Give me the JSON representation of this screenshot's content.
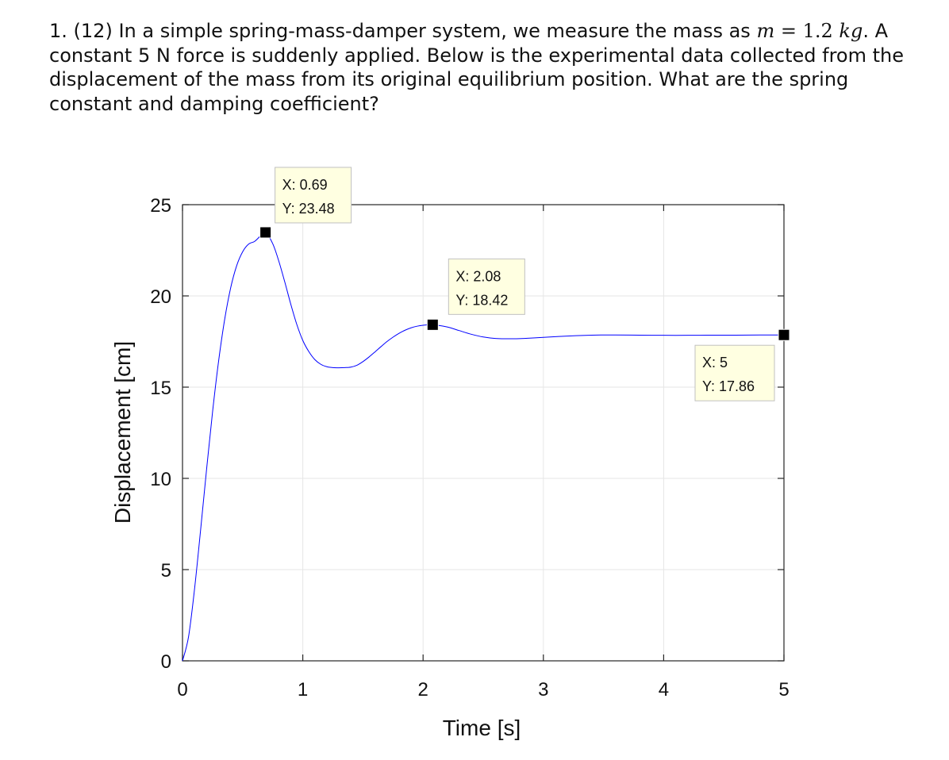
{
  "question": {
    "number": "1.",
    "points": "(12)",
    "text_before_math": "In a simple spring-mass-damper system, we measure the mass as",
    "math_var": "m",
    "math_eq": "=",
    "math_value": "1.2",
    "math_unit": "kg",
    "text_after_math": ". A constant 5 N force is suddenly applied. Below is the experimental data collected from the displacement of the mass from its original equilibrium position. What are the spring constant and damping coefficient?"
  },
  "chart_data": {
    "type": "line",
    "title": "",
    "xlabel": "Time [s]",
    "ylabel": "Displacement [cm]",
    "xlim": [
      0,
      5
    ],
    "ylim": [
      0,
      25
    ],
    "xticks": [
      0,
      1,
      2,
      3,
      4,
      5
    ],
    "yticks": [
      0,
      5,
      10,
      15,
      20,
      25
    ],
    "grid": true,
    "series": [
      {
        "color": "#0000ff",
        "points": [
          [
            0.0,
            0.0
          ],
          [
            0.05,
            1.31
          ],
          [
            0.1,
            3.93
          ],
          [
            0.15,
            7.14
          ],
          [
            0.2,
            10.48
          ],
          [
            0.25,
            13.65
          ],
          [
            0.3,
            16.42
          ],
          [
            0.35,
            18.69
          ],
          [
            0.4,
            20.43
          ],
          [
            0.45,
            21.65
          ],
          [
            0.5,
            22.42
          ],
          [
            0.55,
            22.84
          ],
          [
            0.6,
            22.99
          ],
          [
            0.65,
            23.3
          ],
          [
            0.69,
            23.48
          ],
          [
            0.75,
            22.86
          ],
          [
            0.8,
            21.92
          ],
          [
            0.85,
            20.77
          ],
          [
            0.9,
            19.55
          ],
          [
            0.95,
            18.44
          ],
          [
            1.0,
            17.56
          ],
          [
            1.05,
            16.95
          ],
          [
            1.1,
            16.51
          ],
          [
            1.15,
            16.25
          ],
          [
            1.2,
            16.12
          ],
          [
            1.25,
            16.07
          ],
          [
            1.3,
            16.06
          ],
          [
            1.35,
            16.07
          ],
          [
            1.4,
            16.1
          ],
          [
            1.45,
            16.2
          ],
          [
            1.5,
            16.4
          ],
          [
            1.55,
            16.65
          ],
          [
            1.6,
            16.93
          ],
          [
            1.65,
            17.22
          ],
          [
            1.7,
            17.5
          ],
          [
            1.75,
            17.74
          ],
          [
            1.8,
            17.95
          ],
          [
            1.85,
            18.12
          ],
          [
            1.9,
            18.25
          ],
          [
            1.95,
            18.34
          ],
          [
            2.0,
            18.39
          ],
          [
            2.08,
            18.42
          ],
          [
            2.2,
            18.3
          ],
          [
            2.3,
            18.1
          ],
          [
            2.4,
            17.9
          ],
          [
            2.5,
            17.75
          ],
          [
            2.6,
            17.67
          ],
          [
            2.7,
            17.65
          ],
          [
            2.8,
            17.66
          ],
          [
            2.9,
            17.69
          ],
          [
            3.0,
            17.73
          ],
          [
            3.2,
            17.8
          ],
          [
            3.4,
            17.85
          ],
          [
            3.5,
            17.86
          ],
          [
            3.6,
            17.86
          ],
          [
            3.8,
            17.85
          ],
          [
            4.0,
            17.84
          ],
          [
            4.2,
            17.84
          ],
          [
            4.4,
            17.85
          ],
          [
            4.6,
            17.85
          ],
          [
            4.8,
            17.86
          ],
          [
            5.0,
            17.86
          ]
        ]
      }
    ],
    "annotations": [
      {
        "x": 0.69,
        "y": 23.48,
        "label_x": "X: 0.69",
        "label_y": "Y: 23.48"
      },
      {
        "x": 2.08,
        "y": 18.42,
        "label_x": "X: 2.08",
        "label_y": "Y: 18.42"
      },
      {
        "x": 5,
        "y": 17.86,
        "label_x": "X: 5",
        "label_y": "Y: 17.86"
      }
    ],
    "colors": {
      "line": "#0000ff",
      "grid": "#e6e6e6",
      "tooltip_bg": "#ffffe1",
      "tooltip_border": "#c0c0c0",
      "marker": "#000000"
    }
  }
}
